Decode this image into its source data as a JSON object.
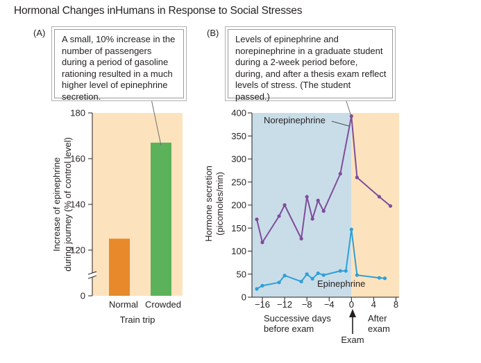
{
  "title": "Hormonal Changes inHumans in Response to Social Stresses",
  "panel_a": {
    "label": "(A)",
    "callout": "A small, 10% increase in the number of passengers during a period of gasoline rationing resulted in a much higher level of epinephrine secretion."
  },
  "panel_b": {
    "label": "(B)",
    "callout": "Levels of epinephrine and norepinephrine in a graduate student during a 2-week period before, during, and after a thesis exam reflect levels of stress. (The student passed.)",
    "region_before": "Successive days before exam",
    "region_after": "After exam",
    "exam_marker": "Exam"
  },
  "colors": {
    "panel_a_bg": "#fde3bd",
    "before_bg": "#c9dde8",
    "after_bg": "#fde3bd",
    "normal_bar": "#e8892b",
    "crowded_bar": "#5cb25a",
    "norepinephrine": "#7e4d9b",
    "epinephrine": "#2f9fd8"
  },
  "chart_data": [
    {
      "type": "bar",
      "title": "",
      "categories": [
        "Normal",
        "Crowded"
      ],
      "values": [
        125,
        167
      ],
      "xlabel": "Train trip",
      "ylabel": "Increase of epinephrine during journey (% of control level)",
      "ylim": [
        100,
        180
      ],
      "yticks": [
        0,
        120,
        140,
        160,
        180
      ],
      "grid": false,
      "axis_break": true
    },
    {
      "type": "line",
      "title": "",
      "xlabel": "",
      "ylabel": "Hormone secretion (picomoles/min)",
      "xlim": [
        -18,
        8
      ],
      "ylim": [
        0,
        400
      ],
      "xticks": [
        -16,
        -12,
        -8,
        -4,
        0,
        4,
        8
      ],
      "xtick_labels": [
        "−16",
        "−12",
        "−8",
        "−4",
        "0",
        "4",
        "8"
      ],
      "yticks": [
        0,
        50,
        100,
        150,
        200,
        250,
        300,
        350,
        400
      ],
      "grid": false,
      "series": [
        {
          "name": "Norepinephrine",
          "x": [
            -17,
            -16,
            -13,
            -12,
            -9,
            -8,
            -7,
            -6,
            -5,
            -2,
            0,
            1,
            5,
            7
          ],
          "y": [
            169,
            119,
            176,
            200,
            127,
            218,
            170,
            210,
            187,
            268,
            393,
            260,
            218,
            198
          ]
        },
        {
          "name": "Epinephrine",
          "x": [
            -17,
            -16,
            -13,
            -12,
            -9,
            -8,
            -7,
            -6,
            -5,
            -2,
            -1,
            0,
            1,
            5,
            6
          ],
          "y": [
            18,
            25,
            32,
            47,
            34,
            50,
            40,
            52,
            48,
            57,
            57,
            147,
            48,
            42,
            41
          ]
        }
      ]
    }
  ]
}
